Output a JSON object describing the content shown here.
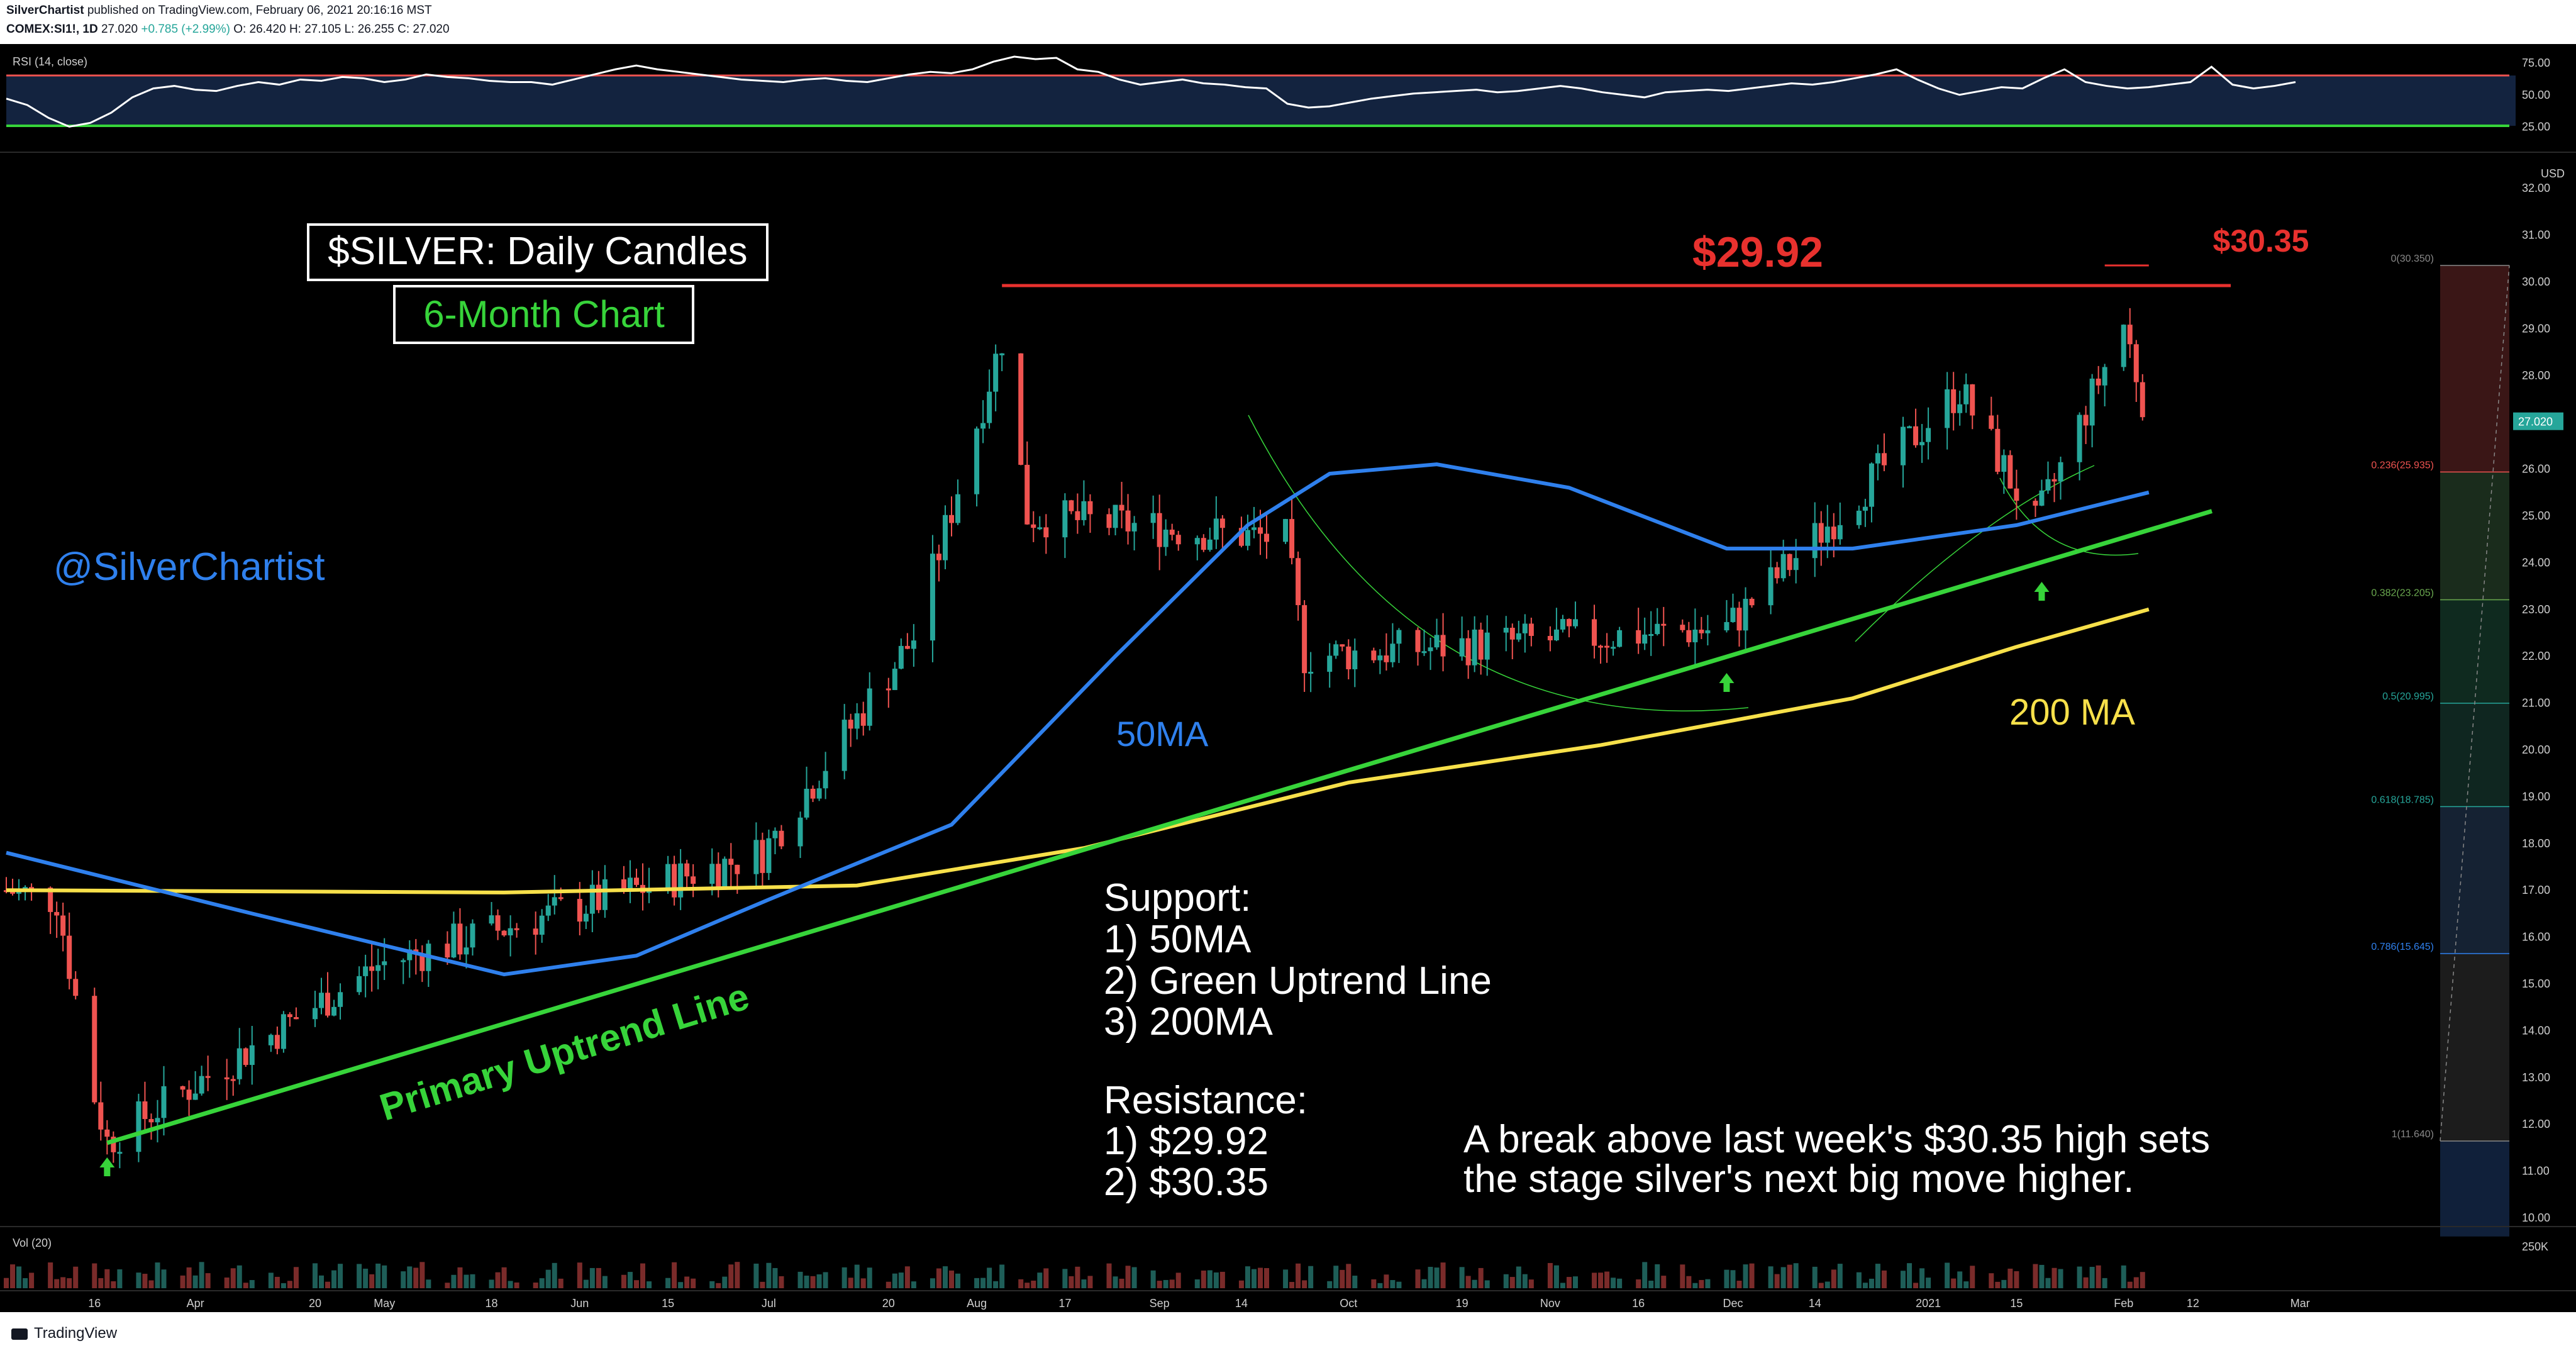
{
  "header": {
    "author": "SilverChartist",
    "published": "published on TradingView.com, February 06, 2021 20:16:16 MST",
    "symbol": "COMEX:SI1!, 1D",
    "last": "27.020",
    "change": "+0.785 (+2.99%)",
    "ohlc": "O: 26.420  H: 27.105  L: 26.255  C: 27.020"
  },
  "footer": {
    "brand": "TradingView"
  },
  "colors": {
    "candle_up": "#26a69a",
    "candle_down": "#ef5350",
    "ma50": "#2f80ed",
    "ma200": "#f7e04a",
    "uptrend": "#37d43a",
    "resistance": "#e8312e",
    "rsi_line": "#ffffff"
  },
  "chart_data": [
    {
      "type": "candlestick",
      "title": "$SILVER: Daily Candles",
      "subtitle": "6-Month Chart",
      "watermark": "@SilverChartist",
      "currency": "USD",
      "ylim": [
        9.6,
        32.6
      ],
      "y_ticks": [
        "32.00",
        "31.00",
        "30.00",
        "29.00",
        "28.00",
        "27.00",
        "26.00",
        "25.00",
        "24.00",
        "23.00",
        "22.00",
        "21.00",
        "20.00",
        "19.00",
        "18.00",
        "17.00",
        "16.00",
        "15.00",
        "14.00",
        "13.00",
        "12.00",
        "11.00",
        "10.00"
      ],
      "x_ticks": [
        "16",
        "Apr",
        "20",
        "May",
        "18",
        "Jun",
        "15",
        "Jul",
        "20",
        "Aug",
        "17",
        "Sep",
        "14",
        "Oct",
        "19",
        "Nov",
        "16",
        "Dec",
        "14",
        "2021",
        "15",
        "Feb",
        "12",
        "Mar"
      ],
      "last_price": "27.020",
      "key_points": [
        {
          "date": "2020-03-16",
          "x": 70,
          "close": 12.6
        },
        {
          "date": "2020-03-18",
          "low": 11.64
        },
        {
          "date": "2020-04-30",
          "close": 15.4
        },
        {
          "date": "2020-06-30",
          "close": 17.8
        },
        {
          "date": "2020-07-24",
          "close": 22.4
        },
        {
          "date": "2020-08-07",
          "high": 29.92,
          "close": 28.8
        },
        {
          "date": "2020-08-11",
          "close": 25.0
        },
        {
          "date": "2020-09-21",
          "close": 24.5
        },
        {
          "date": "2020-09-24",
          "low": 22.0
        },
        {
          "date": "2020-11-30",
          "low": 22.6
        },
        {
          "date": "2021-01-06",
          "close": 27.7
        },
        {
          "date": "2021-01-18",
          "close": 24.8
        },
        {
          "date": "2021-02-01",
          "high": 30.35,
          "close": 29.1
        },
        {
          "date": "2021-02-05",
          "close": 27.02
        }
      ],
      "ma50": {
        "name": "50MA",
        "points": [
          {
            "date": "2020-03-02",
            "value": 17.8
          },
          {
            "date": "2020-04-10",
            "value": 16.5
          },
          {
            "date": "2020-05-20",
            "value": 15.2
          },
          {
            "date": "2020-06-10",
            "value": 15.6
          },
          {
            "date": "2020-07-01",
            "value": 16.8
          },
          {
            "date": "2020-07-30",
            "value": 18.4
          },
          {
            "date": "2020-08-25",
            "value": 22.0
          },
          {
            "date": "2020-09-15",
            "value": 24.8
          },
          {
            "date": "2020-09-28",
            "value": 25.9
          },
          {
            "date": "2020-10-15",
            "value": 26.1
          },
          {
            "date": "2020-11-05",
            "value": 25.6
          },
          {
            "date": "2020-11-30",
            "value": 24.3
          },
          {
            "date": "2020-12-20",
            "value": 24.3
          },
          {
            "date": "2021-01-15",
            "value": 24.8
          },
          {
            "date": "2021-02-05",
            "value": 25.5
          }
        ]
      },
      "ma200": {
        "name": "200 MA",
        "points": [
          {
            "date": "2020-03-02",
            "value": 17.0
          },
          {
            "date": "2020-05-20",
            "value": 16.95
          },
          {
            "date": "2020-07-15",
            "value": 17.1
          },
          {
            "date": "2020-08-20",
            "value": 17.9
          },
          {
            "date": "2020-10-01",
            "value": 19.3
          },
          {
            "date": "2020-11-10",
            "value": 20.1
          },
          {
            "date": "2020-12-20",
            "value": 21.1
          },
          {
            "date": "2021-01-15",
            "value": 22.2
          },
          {
            "date": "2021-02-05",
            "value": 23.0
          }
        ]
      },
      "uptrend_line": {
        "name": "Primary Uptrend Line",
        "points": [
          {
            "date": "2020-03-18",
            "value": 11.6
          },
          {
            "date": "2021-02-15",
            "value": 25.1
          }
        ]
      },
      "resistance_lines": [
        {
          "label": "$29.92",
          "value": 29.92,
          "from": "2020-08-07",
          "to": "2021-02-18"
        },
        {
          "label": "$30.35",
          "value": 30.35,
          "from": "2021-01-29",
          "to": "2021-02-05"
        }
      ],
      "fibonacci": [
        {
          "label": "0(30.350)",
          "value": 30.35
        },
        {
          "label": "0.236(25.935)",
          "value": 25.935
        },
        {
          "label": "0.382(23.205)",
          "value": 23.205
        },
        {
          "label": "0.5(20.995)",
          "value": 20.995
        },
        {
          "label": "0.618(18.785)",
          "value": 18.785
        },
        {
          "label": "0.786(15.645)",
          "value": 15.645
        },
        {
          "label": "1(11.640)",
          "value": 11.64
        }
      ],
      "arrows": [
        {
          "date": "2020-03-18"
        },
        {
          "date": "2020-11-30"
        },
        {
          "date": "2021-01-19"
        }
      ],
      "annotations": {
        "support_title": "Support:",
        "support": [
          "1) 50MA",
          "2) Green Uptrend Line",
          "3) 200MA"
        ],
        "resistance_title": "Resistance:",
        "resistance": [
          "1) $29.92",
          "2) $30.35"
        ],
        "note": [
          "A break above last week's $30.35 high sets",
          "the stage silver's next big move higher."
        ],
        "ma50_label": "50MA",
        "ma200_label": "200 MA",
        "uptrend_label": "Primary Uptrend Line"
      }
    },
    {
      "type": "line",
      "title": "RSI (14, close)",
      "ylim": [
        0,
        100
      ],
      "y_ticks": [
        "75.00",
        "50.00",
        "25.00"
      ],
      "bands": [
        70,
        30
      ],
      "values": [
        47,
        42,
        32,
        25,
        28,
        36,
        48,
        55,
        57,
        54,
        53,
        57,
        60,
        58,
        62,
        61,
        64,
        63,
        60,
        62,
        66,
        64,
        63,
        61,
        60,
        60,
        58,
        62,
        66,
        70,
        73,
        70,
        68,
        66,
        64,
        62,
        61,
        60,
        62,
        63,
        61,
        60,
        63,
        66,
        68,
        67,
        70,
        76,
        80,
        78,
        79,
        70,
        68,
        62,
        58,
        60,
        62,
        59,
        58,
        56,
        55,
        43,
        40,
        41,
        44,
        47,
        49,
        51,
        52,
        53,
        54,
        52,
        53,
        55,
        57,
        55,
        52,
        50,
        48,
        52,
        53,
        54,
        53,
        55,
        57,
        59,
        58,
        60,
        63,
        66,
        70,
        62,
        55,
        50,
        53,
        56,
        55,
        63,
        70,
        60,
        57,
        55,
        56,
        58,
        60,
        72,
        58,
        55,
        57,
        60
      ]
    },
    {
      "type": "bar",
      "title": "Vol (20)",
      "y_ticks": [
        "250K"
      ]
    }
  ]
}
